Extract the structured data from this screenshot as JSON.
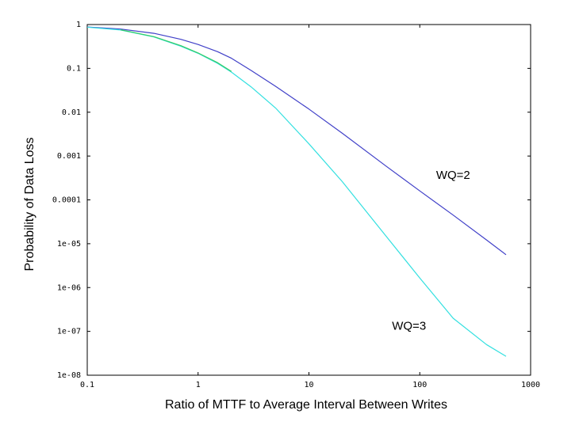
{
  "chart_data": {
    "type": "line",
    "title": "",
    "xlabel": "Ratio of MTTF to Average Interval Between Writes",
    "ylabel": "Probability of Data Loss",
    "xscale": "log",
    "yscale": "log",
    "xlim": [
      0.1,
      1000
    ],
    "ylim": [
      1e-08,
      1
    ],
    "xticks": [
      {
        "value": 0.1,
        "label": "0.1"
      },
      {
        "value": 1,
        "label": "1"
      },
      {
        "value": 10,
        "label": "10"
      },
      {
        "value": 100,
        "label": "100"
      },
      {
        "value": 1000,
        "label": "1000"
      }
    ],
    "yticks": [
      {
        "value": 1,
        "label": "1"
      },
      {
        "value": 0.1,
        "label": "0.1"
      },
      {
        "value": 0.01,
        "label": "0.01"
      },
      {
        "value": 0.001,
        "label": "0.001"
      },
      {
        "value": 0.0001,
        "label": "0.0001"
      },
      {
        "value": 1e-05,
        "label": "1e-05"
      },
      {
        "value": 1e-06,
        "label": "1e-06"
      },
      {
        "value": 1e-07,
        "label": "1e-07"
      },
      {
        "value": 1e-08,
        "label": "1e-08"
      }
    ],
    "grid": false,
    "series": [
      {
        "name": "WQ=2",
        "color": "#4040c8",
        "label_at": [
          200,
          0.0003
        ],
        "x": [
          0.1,
          0.2,
          0.4,
          0.7,
          1,
          1.5,
          2,
          3,
          5,
          10,
          20,
          50,
          100,
          200,
          400,
          600
        ],
        "y": [
          0.88,
          0.79,
          0.63,
          0.46,
          0.35,
          0.24,
          0.17,
          0.09,
          0.039,
          0.0118,
          0.0033,
          0.00058,
          0.00016,
          4.5e-05,
          1.22e-05,
          5.6e-06
        ]
      },
      {
        "name": "WQ=3",
        "color": "#33e0e0",
        "label_at": [
          80,
          1.1e-07
        ],
        "x": [
          0.1,
          0.2,
          0.4,
          0.7,
          1,
          1.5,
          2,
          3,
          5,
          10,
          20,
          50,
          100,
          200,
          400,
          600
        ],
        "y": [
          0.87,
          0.75,
          0.52,
          0.32,
          0.22,
          0.13,
          0.082,
          0.038,
          0.0125,
          0.0019,
          0.00026,
          1.45e-05,
          1.65e-06,
          2e-07,
          5e-08,
          2.7e-08
        ]
      },
      {
        "name": "",
        "color": "#33cc66",
        "x": [
          0.2,
          0.4,
          0.7,
          1,
          1.5,
          2
        ],
        "y": [
          0.76,
          0.53,
          0.33,
          0.225,
          0.135,
          0.085
        ]
      }
    ]
  }
}
